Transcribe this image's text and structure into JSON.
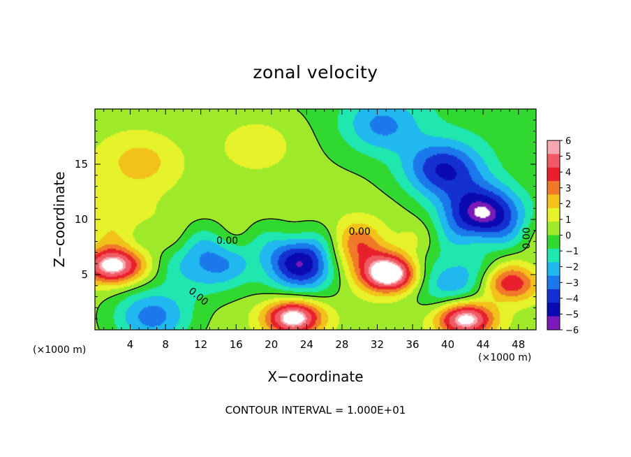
{
  "chart_data": {
    "type": "heatmap",
    "title": "zonal velocity",
    "xlabel": "X−coordinate",
    "ylabel": "Z−coordinate",
    "x_unit": "(×1000 m)",
    "z_unit": "(×1000 m)",
    "xlim": [
      0,
      50
    ],
    "ylim": [
      0,
      20
    ],
    "x_ticks": [
      4,
      8,
      12,
      16,
      20,
      24,
      28,
      32,
      36,
      40,
      44,
      48
    ],
    "y_ticks": [
      5,
      10,
      15
    ],
    "colorbar": {
      "levels": [
        6,
        5,
        4,
        3,
        2,
        1,
        0,
        -1,
        -2,
        -3,
        -4,
        -5,
        -6
      ],
      "colors": [
        "#f6a8b0",
        "#f05a64",
        "#e8202c",
        "#f07a2a",
        "#f2c21a",
        "#e6f22a",
        "#9eea2a",
        "#30d830",
        "#20e6b0",
        "#20b8ee",
        "#1a78ea",
        "#1430d0",
        "#0a0ab0",
        "#7a1ab8"
      ],
      "labels": [
        "6",
        "5",
        "4",
        "3",
        "2",
        "1",
        "0",
        "−1",
        "−2",
        "−3",
        "−4",
        "−5",
        "−6"
      ]
    },
    "contour_labels": [
      {
        "text": "0.00",
        "x": 15,
        "z": 7.8
      },
      {
        "text": "0.00",
        "x": 30,
        "z": 8.6
      },
      {
        "text": "0.00",
        "x": 11.5,
        "z": 2.8
      },
      {
        "text": "0.00",
        "x": 49.3,
        "z": 8.3
      }
    ],
    "features": [
      {
        "kind": "max",
        "x": 18.5,
        "z": 16.8,
        "value": 1.5
      },
      {
        "kind": "max",
        "x": 5.2,
        "z": 15.2,
        "value": 2
      },
      {
        "kind": "max",
        "x": 2.8,
        "z": 10.0,
        "value": 1
      },
      {
        "kind": "min",
        "x": 32.5,
        "z": 18.5,
        "value": -3
      },
      {
        "kind": "min",
        "x": 39.5,
        "z": 14.5,
        "value": -5
      },
      {
        "kind": "min",
        "x": 44.0,
        "z": 10.4,
        "value": -7
      },
      {
        "kind": "min",
        "x": 23.8,
        "z": 6.1,
        "value": -7
      },
      {
        "kind": "min",
        "x": 13.0,
        "z": 6.0,
        "value": -4
      },
      {
        "kind": "min",
        "x": 6.5,
        "z": 1.2,
        "value": -4
      },
      {
        "kind": "min",
        "x": 40.5,
        "z": 4.4,
        "value": -3.5
      },
      {
        "kind": "max",
        "x": 2.0,
        "z": 5.8,
        "value": 7
      },
      {
        "kind": "max",
        "x": 33.5,
        "z": 5.0,
        "value": 7
      },
      {
        "kind": "max",
        "x": 22.5,
        "z": 1.1,
        "value": 7
      },
      {
        "kind": "max",
        "x": 42.0,
        "z": 1.0,
        "value": 7
      },
      {
        "kind": "max",
        "x": 47.0,
        "z": 4.2,
        "value": 4.5
      },
      {
        "kind": "max",
        "x": 29.5,
        "z": 7.0,
        "value": 4
      }
    ]
  },
  "footer": {
    "contour_interval": "CONTOUR INTERVAL = 1.000E+01"
  }
}
